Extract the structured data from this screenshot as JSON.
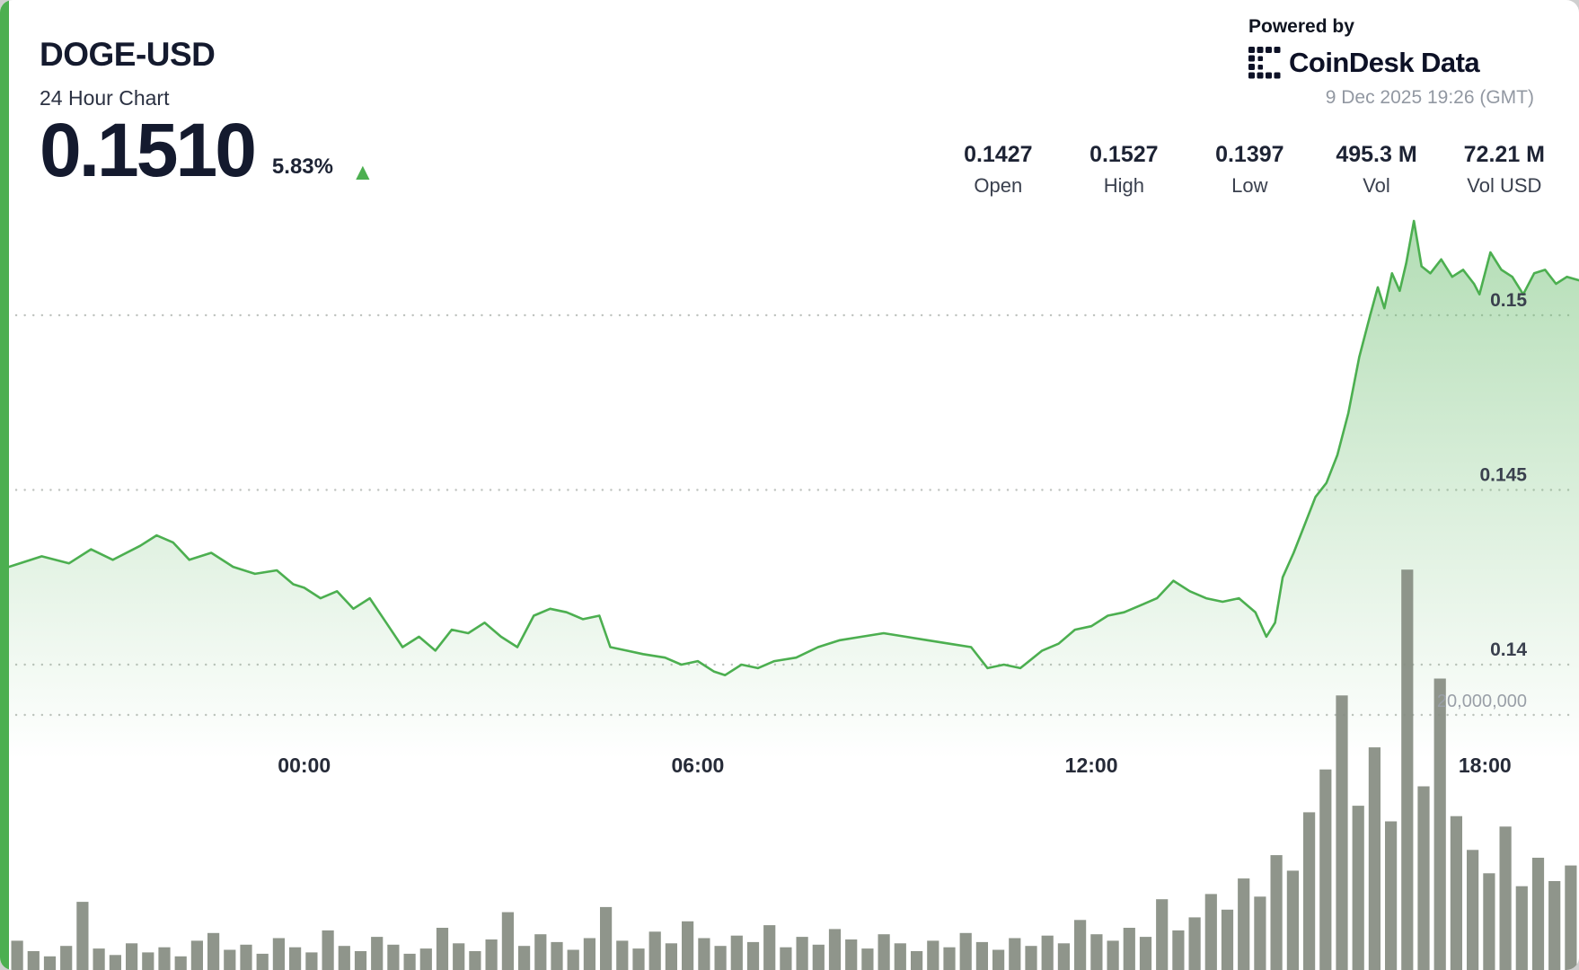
{
  "header": {
    "symbol": "DOGE-USD",
    "subtitle": "24 Hour Chart",
    "price": "0.1510",
    "change_percent": "5.83%",
    "change_icon": "▲",
    "change_direction": "up",
    "stats": [
      {
        "value": "0.1427",
        "label": "Open"
      },
      {
        "value": "0.1527",
        "label": "High"
      },
      {
        "value": "0.1397",
        "label": "Low"
      },
      {
        "value": "495.3 M",
        "label": "Vol"
      },
      {
        "value": "72.21 M",
        "label": "Vol USD"
      }
    ]
  },
  "branding": {
    "powered_by": "Powered by",
    "logo_text_1": "CoinDesk",
    "logo_text_2": "Data",
    "timestamp": "9 Dec 2025 19:26 (GMT)"
  },
  "colors": {
    "accent_green": "#4caf50",
    "area_fill_green": "#66bb6a",
    "volume_bar": "#868d82",
    "dark_text": "#141a2e",
    "gray_text": "#9298a2",
    "gridline": "#bfc3bf"
  },
  "chart_data": {
    "type": "area",
    "title": "DOGE-USD 24 Hour Chart",
    "legend": "none",
    "grid": "dotted-horizontal",
    "start_time_prev_day": "19:30",
    "end_time": "19:26",
    "total_minutes": 1436,
    "x_ticks": [
      {
        "label": "00:00",
        "m": 270
      },
      {
        "label": "06:00",
        "m": 630
      },
      {
        "label": "12:00",
        "m": 990
      },
      {
        "label": "18:00",
        "m": 1350
      }
    ],
    "price_axis": {
      "side": "right",
      "ticks": [
        0.14,
        0.145,
        0.15
      ],
      "labels": [
        "0.14",
        "0.145",
        "0.15"
      ],
      "open": 0.1427,
      "high": 0.1527,
      "low": 0.1397,
      "last": 0.151
    },
    "volume_axis": {
      "side": "right",
      "ticks_millions": [
        20
      ],
      "labels": [
        "20,000,000"
      ],
      "total_volume": "495.3 M",
      "total_volume_usd": "72.21 M"
    },
    "price_series": {
      "minutes": [
        0,
        30,
        55,
        75,
        95,
        120,
        135,
        150,
        165,
        185,
        205,
        225,
        245,
        260,
        270,
        285,
        300,
        315,
        330,
        345,
        360,
        375,
        390,
        405,
        420,
        435,
        450,
        465,
        480,
        495,
        510,
        525,
        540,
        550,
        565,
        580,
        600,
        615,
        630,
        645,
        655,
        670,
        685,
        700,
        720,
        740,
        760,
        780,
        800,
        820,
        840,
        860,
        880,
        895,
        910,
        925,
        945,
        960,
        975,
        990,
        1005,
        1020,
        1035,
        1050,
        1065,
        1080,
        1095,
        1110,
        1125,
        1140,
        1150,
        1158,
        1165,
        1175,
        1185,
        1195,
        1205,
        1215,
        1225,
        1235,
        1245,
        1252,
        1258,
        1265,
        1272,
        1278,
        1285,
        1292,
        1300,
        1310,
        1320,
        1330,
        1340,
        1345,
        1355,
        1365,
        1375,
        1385,
        1395,
        1405,
        1415,
        1425,
        1436
      ],
      "prices": [
        0.1428,
        0.1431,
        0.1429,
        0.1433,
        0.143,
        0.1434,
        0.1437,
        0.1435,
        0.143,
        0.1432,
        0.1428,
        0.1426,
        0.1427,
        0.1423,
        0.1422,
        0.1419,
        0.1421,
        0.1416,
        0.1419,
        0.1412,
        0.1405,
        0.1408,
        0.1404,
        0.141,
        0.1409,
        0.1412,
        0.1408,
        0.1405,
        0.1414,
        0.1416,
        0.1415,
        0.1413,
        0.1414,
        0.1405,
        0.1404,
        0.1403,
        0.1402,
        0.14,
        0.1401,
        0.1398,
        0.1397,
        0.14,
        0.1399,
        0.1401,
        0.1402,
        0.1405,
        0.1407,
        0.1408,
        0.1409,
        0.1408,
        0.1407,
        0.1406,
        0.1405,
        0.1399,
        0.14,
        0.1399,
        0.1404,
        0.1406,
        0.141,
        0.1411,
        0.1414,
        0.1415,
        0.1417,
        0.1419,
        0.1424,
        0.1421,
        0.1419,
        0.1418,
        0.1419,
        0.1415,
        0.1408,
        0.1412,
        0.1425,
        0.1432,
        0.144,
        0.1448,
        0.1452,
        0.146,
        0.1472,
        0.1488,
        0.15,
        0.1508,
        0.1502,
        0.1512,
        0.1507,
        0.1515,
        0.1527,
        0.1514,
        0.1512,
        0.1516,
        0.1511,
        0.1513,
        0.1509,
        0.1506,
        0.1518,
        0.1513,
        0.1511,
        0.1506,
        0.1512,
        0.1513,
        0.1509,
        0.1511,
        0.151
      ]
    },
    "volume_series_millions": [
      2.6,
      1.8,
      1.4,
      2.2,
      5.6,
      2.0,
      1.5,
      2.4,
      1.7,
      2.1,
      1.4,
      2.6,
      3.2,
      1.9,
      2.3,
      1.6,
      2.8,
      2.1,
      1.7,
      3.4,
      2.2,
      1.8,
      2.9,
      2.3,
      1.6,
      2.0,
      3.6,
      2.4,
      1.8,
      2.7,
      4.8,
      2.2,
      3.1,
      2.5,
      1.9,
      2.8,
      5.2,
      2.6,
      2.0,
      3.3,
      2.4,
      4.1,
      2.8,
      2.2,
      3.0,
      2.5,
      3.8,
      2.1,
      2.9,
      2.3,
      3.5,
      2.7,
      2.0,
      3.1,
      2.4,
      1.8,
      2.6,
      2.1,
      3.2,
      2.5,
      1.9,
      2.8,
      2.2,
      3.0,
      2.4,
      4.2,
      3.1,
      2.6,
      3.6,
      2.9,
      5.8,
      3.4,
      4.4,
      6.2,
      5.0,
      7.4,
      6.0,
      9.2,
      8.0,
      12.5,
      15.8,
      21.5,
      13.0,
      17.5,
      11.8,
      31.2,
      14.5,
      22.8,
      12.2,
      9.6,
      7.8,
      11.4,
      6.8,
      9.0,
      7.2,
      8.4
    ]
  }
}
